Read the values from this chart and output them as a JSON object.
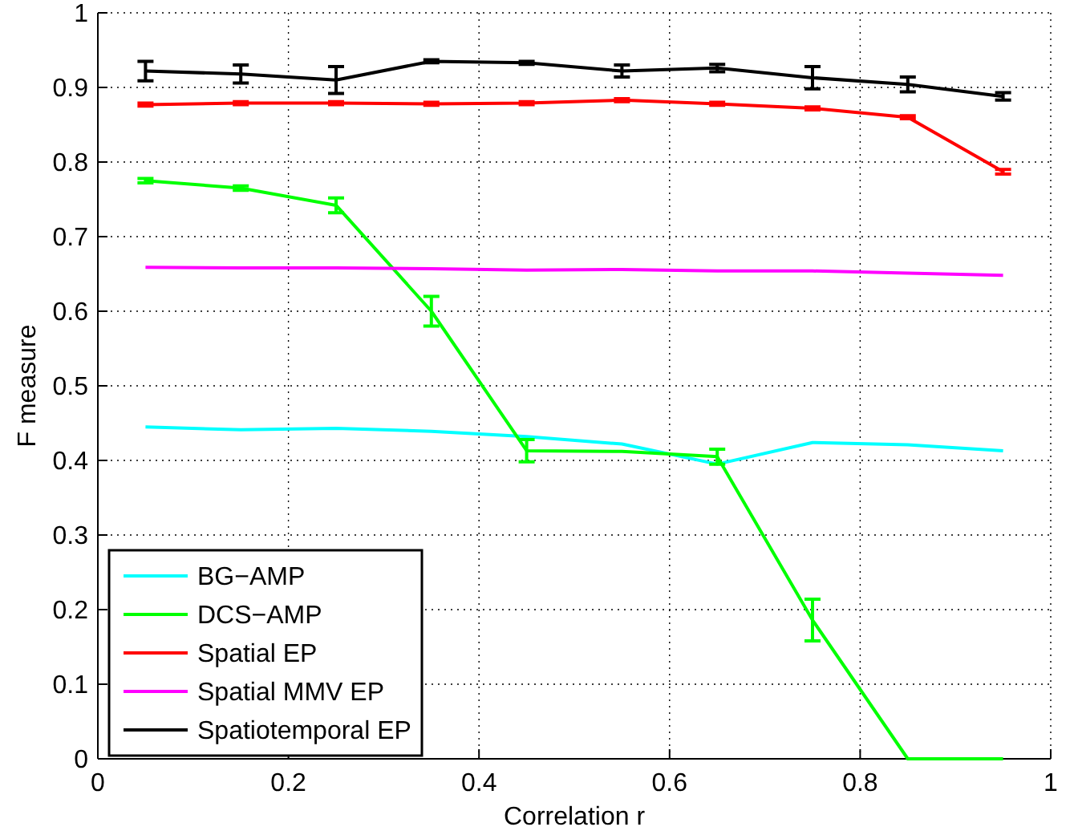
{
  "chart_data": {
    "type": "line",
    "xlabel": "Correlation r",
    "ylabel": "F measure",
    "x": [
      0.05,
      0.15,
      0.25,
      0.35,
      0.45,
      0.55,
      0.65,
      0.75,
      0.85,
      0.95
    ],
    "xlim": [
      0,
      1
    ],
    "xticks": [
      0,
      0.2,
      0.4,
      0.6,
      0.8,
      1
    ],
    "ylim": [
      0,
      1
    ],
    "yticks": [
      0,
      0.1,
      0.2,
      0.3,
      0.4,
      0.5,
      0.6,
      0.7,
      0.8,
      0.9,
      1
    ],
    "grid": true,
    "legend": "bottom left",
    "line_style": "solid",
    "series": [
      {
        "name": "BG−AMP",
        "color": "#00ffff",
        "values": [
          0.445,
          0.441,
          0.443,
          0.439,
          0.432,
          0.422,
          0.395,
          0.424,
          0.421,
          0.413
        ]
      },
      {
        "name": "DCS−AMP",
        "color": "#00ff00",
        "values": [
          0.775,
          0.765,
          0.742,
          0.6,
          0.413,
          0.412,
          0.405,
          0.186,
          0,
          0
        ],
        "errors": [
          0.003,
          0.003,
          0.01,
          0.02,
          0.015,
          null,
          0.01,
          0.028,
          null,
          null
        ]
      },
      {
        "name": "Spatial EP",
        "color": "#ff0000",
        "values": [
          0.877,
          0.879,
          0.879,
          0.878,
          0.879,
          0.883,
          0.878,
          0.872,
          0.86,
          0.787
        ],
        "errors": [
          0.002,
          0.002,
          0.002,
          0.002,
          0.002,
          0.002,
          0.002,
          0.002,
          0.002,
          0.003
        ]
      },
      {
        "name": "Spatial MMV EP",
        "color": "#ff00ff",
        "values": [
          0.659,
          0.658,
          0.658,
          0.657,
          0.655,
          0.656,
          0.654,
          0.654,
          0.651,
          0.648
        ]
      },
      {
        "name": "Spatiotemporal EP",
        "color": "#000000",
        "values": [
          0.922,
          0.918,
          0.91,
          0.935,
          0.933,
          0.922,
          0.926,
          0.913,
          0.904,
          0.888
        ],
        "errors": [
          0.013,
          0.012,
          0.018,
          0.002,
          0.002,
          0.008,
          0.005,
          0.015,
          0.01,
          0.005
        ]
      }
    ]
  }
}
